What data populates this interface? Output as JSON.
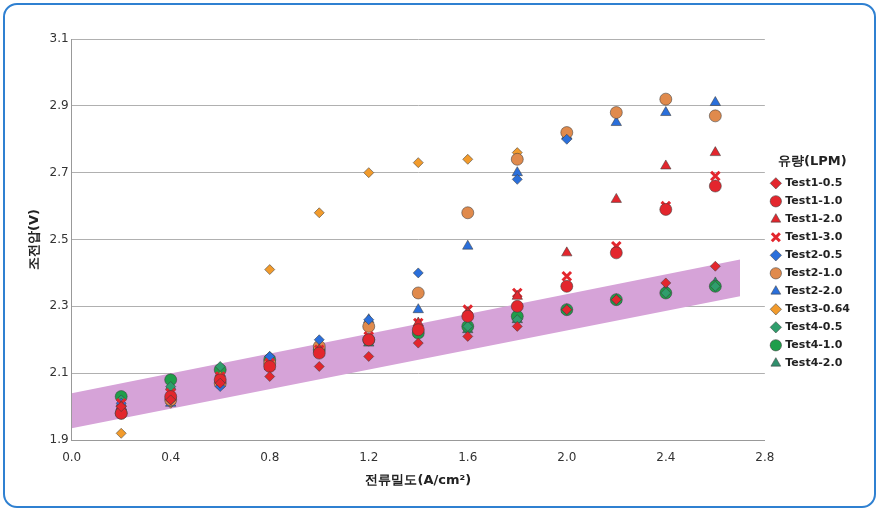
{
  "chart_data": {
    "type": "scatter",
    "x_label": "전류밀도(A/cm²)",
    "y_label": "조전압(V)",
    "legend_title": "유량(LPM)",
    "legend": "right",
    "grid": "y",
    "xlim": [
      0,
      2.8
    ],
    "xticks": [
      {
        "value": 0,
        "label": "0.0"
      },
      0.4,
      0.8,
      1.2,
      1.6,
      {
        "value": 2,
        "label": "2.0"
      },
      2.4,
      2.8
    ],
    "ylim": [
      1.9,
      3.1
    ],
    "yticks": [
      1.9,
      2.1,
      2.3,
      2.5,
      2.7,
      2.9,
      3.1
    ],
    "band": {
      "x": [
        0,
        2.7
      ],
      "lower": [
        1.935,
        2.33
      ],
      "upper": [
        2.04,
        2.44
      ],
      "color": "#d6a3d8"
    },
    "series": [
      {
        "name": "Test1-0.5",
        "color": "#e3262d",
        "marker": "diamond",
        "x": [
          0.2,
          0.4,
          0.6,
          0.8,
          1.0,
          1.2,
          1.4,
          1.6,
          1.8,
          2.0,
          2.2,
          2.4,
          2.6
        ],
        "values": [
          2.0,
          2.02,
          2.07,
          2.09,
          2.12,
          2.15,
          2.19,
          2.21,
          2.24,
          2.29,
          2.32,
          2.37,
          2.42
        ]
      },
      {
        "name": "Test1-1.0",
        "color": "#e3262d",
        "marker": "circle",
        "x": [
          0.2,
          0.4,
          0.6,
          0.8,
          1.0,
          1.2,
          1.4,
          1.6,
          1.8,
          2.0,
          2.2,
          2.4,
          2.6
        ],
        "values": [
          1.98,
          2.03,
          2.08,
          2.12,
          2.16,
          2.2,
          2.23,
          2.27,
          2.3,
          2.36,
          2.46,
          2.59,
          2.66
        ]
      },
      {
        "name": "Test1-2.0",
        "color": "#e3262d",
        "marker": "triangle",
        "x": [
          0.2,
          0.4,
          0.6,
          0.8,
          1.0,
          1.2,
          1.4,
          1.6,
          1.8,
          2.0,
          2.2,
          2.4,
          2.6
        ],
        "values": [
          2.0,
          2.03,
          2.08,
          2.12,
          2.17,
          2.2,
          2.25,
          2.28,
          2.33,
          2.46,
          2.62,
          2.72,
          2.76
        ]
      },
      {
        "name": "Test1-3.0",
        "color": "#e3262d",
        "marker": "x",
        "x": [
          0.2,
          0.4,
          0.6,
          0.8,
          1.0,
          1.2,
          1.4,
          1.6,
          1.8,
          2.0,
          2.2,
          2.4,
          2.6
        ],
        "values": [
          2.01,
          2.04,
          2.09,
          2.13,
          2.17,
          2.21,
          2.25,
          2.29,
          2.34,
          2.39,
          2.48,
          2.6,
          2.69
        ]
      },
      {
        "name": "Test2-0.5",
        "color": "#2a6fdb",
        "marker": "diamond",
        "x": [
          0.2,
          0.4,
          0.6,
          0.8,
          1.0,
          1.2,
          1.4,
          1.6,
          1.8,
          2.0
        ],
        "values": [
          2.01,
          2.02,
          2.06,
          2.15,
          2.2,
          2.26,
          2.4,
          2.28,
          2.68,
          2.8
        ]
      },
      {
        "name": "Test2-1.0",
        "color": "#e08a4c",
        "marker": "circle",
        "x": [
          0.2,
          0.4,
          0.6,
          0.8,
          1.0,
          1.2,
          1.4,
          1.6,
          1.8,
          2.0,
          2.2,
          2.4,
          2.6
        ],
        "values": [
          1.98,
          2.02,
          2.07,
          2.13,
          2.18,
          2.24,
          2.34,
          2.58,
          2.74,
          2.82,
          2.88,
          2.92,
          2.87
        ]
      },
      {
        "name": "Test2-2.0",
        "color": "#2a6fdb",
        "marker": "triangle",
        "x": [
          0.2,
          0.4,
          0.6,
          0.8,
          1.0,
          1.2,
          1.4,
          1.6,
          1.8,
          2.0,
          2.2,
          2.4,
          2.6
        ],
        "values": [
          2.0,
          2.01,
          2.07,
          2.12,
          2.18,
          2.26,
          2.29,
          2.48,
          2.7,
          2.81,
          2.85,
          2.88,
          2.91
        ]
      },
      {
        "name": "Test3-0.64",
        "color": "#f29b2c",
        "marker": "diamond",
        "x": [
          0.2,
          0.4,
          0.6,
          0.8,
          1.0,
          1.2,
          1.4,
          1.6,
          1.8
        ],
        "values": [
          1.92,
          2.01,
          2.09,
          2.41,
          2.58,
          2.7,
          2.73,
          2.74,
          2.76
        ]
      },
      {
        "name": "Test4-0.5",
        "color": "#2f9e6c",
        "marker": "diamond",
        "x": [
          0.2,
          0.4,
          0.6,
          0.8,
          1.0,
          1.2,
          1.4,
          1.6,
          1.8,
          2.0,
          2.2,
          2.4,
          2.6
        ],
        "values": [
          2.02,
          2.06,
          2.12,
          2.15,
          2.17,
          2.2,
          2.23,
          2.24,
          2.26,
          2.29,
          2.32,
          2.34,
          2.36
        ]
      },
      {
        "name": "Test4-1.0",
        "color": "#1f9e4a",
        "marker": "circle",
        "x": [
          0.2,
          0.4,
          0.6,
          0.8,
          1.0,
          1.2,
          1.4,
          1.6,
          1.8,
          2.0,
          2.2,
          2.4,
          2.6
        ],
        "values": [
          2.03,
          2.08,
          2.11,
          2.14,
          2.17,
          2.2,
          2.22,
          2.24,
          2.27,
          2.29,
          2.32,
          2.34,
          2.36
        ]
      },
      {
        "name": "Test4-2.0",
        "color": "#2f8f6c",
        "marker": "triangle",
        "x": [
          0.2,
          0.4,
          0.6,
          0.8,
          1.0,
          1.2,
          1.4,
          1.6,
          1.8,
          2.0,
          2.2,
          2.4,
          2.6
        ],
        "values": [
          2.01,
          2.06,
          2.1,
          2.13,
          2.16,
          2.19,
          2.22,
          2.23,
          2.26,
          2.29,
          2.32,
          2.35,
          2.37
        ]
      }
    ]
  }
}
